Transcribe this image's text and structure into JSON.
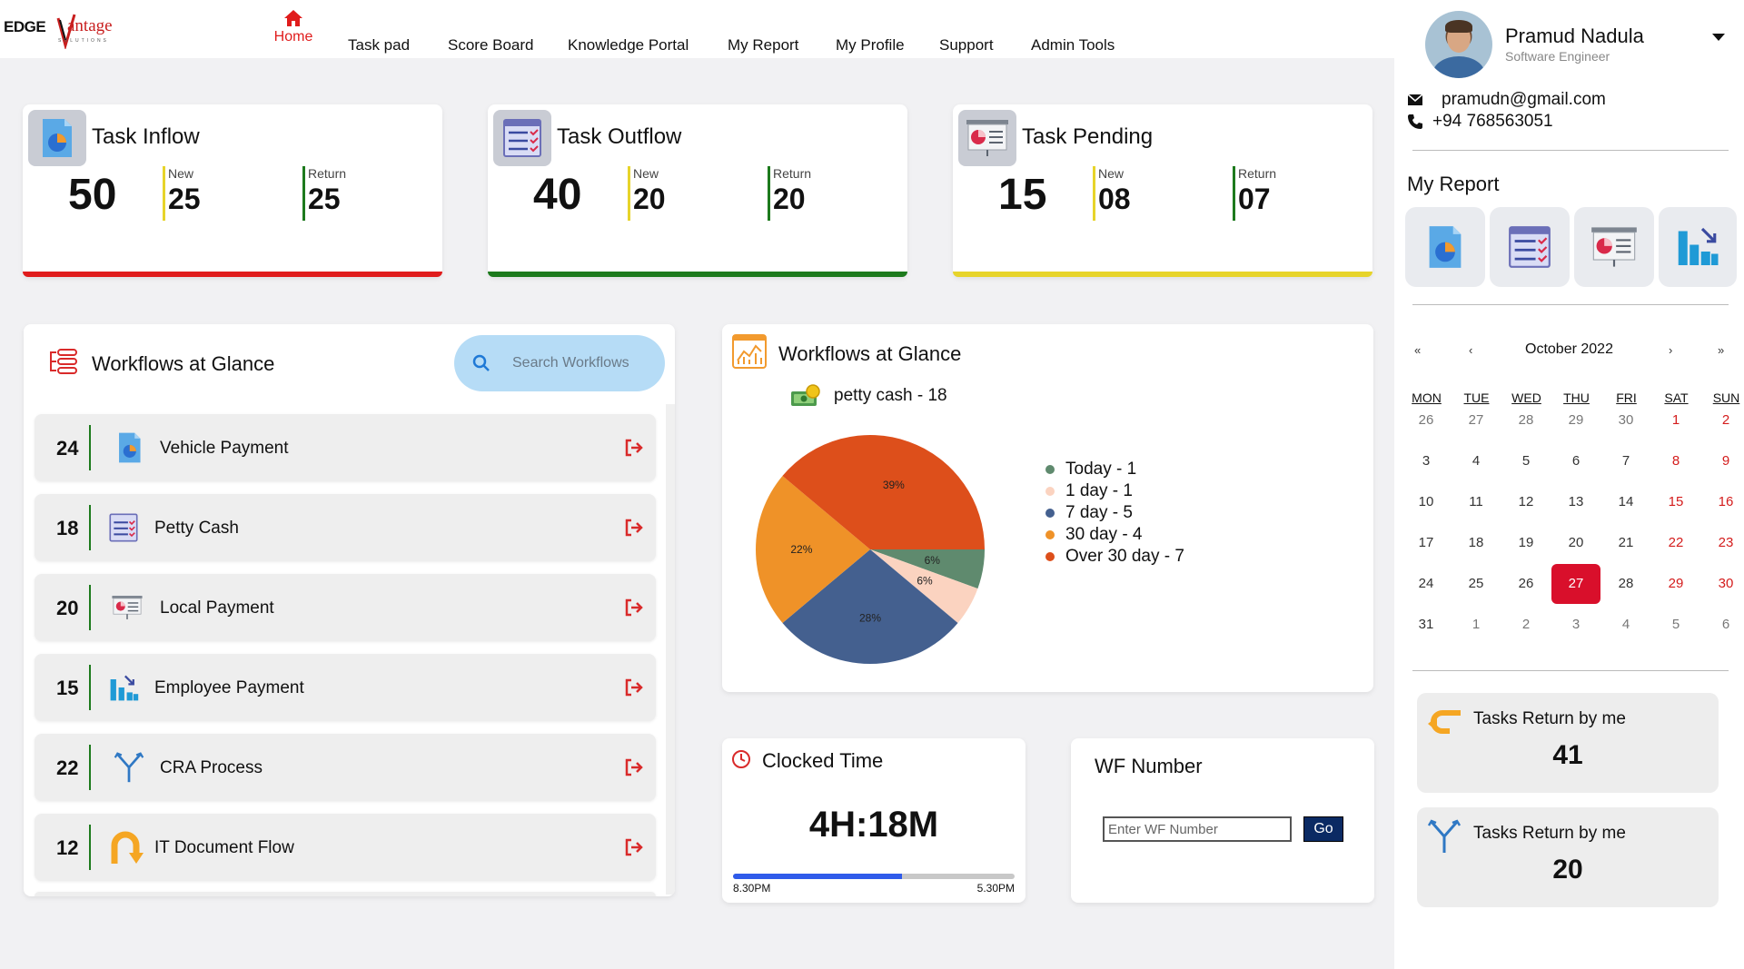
{
  "brand": {
    "edge": "EDGE",
    "vantage": "antage",
    "tagline": "SOLUTIONS"
  },
  "nav": {
    "home": "Home",
    "items": [
      "Task pad",
      "Score Board",
      "Knowledge Portal",
      "My Report",
      "My Profile",
      "Support",
      "Admin Tools"
    ]
  },
  "stats": [
    {
      "title": "Task Inflow",
      "total": "50",
      "new_label": "New",
      "new_value": "25",
      "return_label": "Return",
      "return_value": "25",
      "bar_color": "#e01c1c",
      "icon": "document-pie-icon"
    },
    {
      "title": "Task Outflow",
      "total": "40",
      "new_label": "New",
      "new_value": "20",
      "return_label": "Return",
      "return_value": "20",
      "bar_color": "#1d7a1d",
      "icon": "checklist-icon"
    },
    {
      "title": "Task Pending",
      "total": "15",
      "new_label": "New",
      "new_value": "08",
      "return_label": "Return",
      "return_value": "07",
      "bar_color": "#e7d42a",
      "icon": "presentation-chart-icon"
    }
  ],
  "workflows": {
    "title": "Workflows at Glance",
    "search_placeholder": "Search Workflows",
    "rows": [
      {
        "count": "24",
        "label": "Vehicle Payment",
        "icon": "document-pie-icon"
      },
      {
        "count": "18",
        "label": "Petty Cash",
        "icon": "checklist-icon"
      },
      {
        "count": "20",
        "label": "Local Payment",
        "icon": "presentation-chart-icon"
      },
      {
        "count": "15",
        "label": "Employee Payment",
        "icon": "bar-chart-icon"
      },
      {
        "count": "22",
        "label": "CRA Process",
        "icon": "merge-arrows-icon"
      },
      {
        "count": "12",
        "label": "IT Document Flow",
        "icon": "u-turn-arrow-icon"
      }
    ]
  },
  "pie_panel": {
    "title": "Workflows at Glance",
    "subtitle": "petty cash - 18"
  },
  "chart_data": {
    "type": "pie",
    "title": "Workflows at Glance",
    "subtitle": "petty cash - 18",
    "slices": [
      {
        "label": "Today - 1",
        "value": 1,
        "percent_label": "6%",
        "color": "#5f8a6e"
      },
      {
        "label": "1 day - 1",
        "value": 1,
        "percent_label": "6%",
        "color": "#fbd3c0"
      },
      {
        "label": "7 day - 5",
        "value": 5,
        "percent_label": "28%",
        "color": "#44608f"
      },
      {
        "label": "30 day - 4",
        "value": 4,
        "percent_label": "22%",
        "color": "#ef9228"
      },
      {
        "label": "Over 30 day - 7",
        "value": 7,
        "percent_label": "39%",
        "color": "#dd4f1b"
      }
    ],
    "legend_position": "right"
  },
  "clock": {
    "title": "Clocked Time",
    "value": "4H:18M",
    "start": "8.30PM",
    "end": "5.30PM",
    "progress": 0.6
  },
  "wf_number": {
    "title": "WF Number",
    "placeholder": "Enter WF Number",
    "go_label": "Go"
  },
  "user": {
    "name": "Pramud Nadula",
    "role": "Software Engineer",
    "email": "pramudn@gmail.com",
    "phone": "+94 768563051"
  },
  "my_report": {
    "title": "My Report",
    "tiles": [
      "document-pie-icon",
      "checklist-icon",
      "presentation-chart-icon",
      "bar-chart-arrow-icon"
    ]
  },
  "calendar": {
    "month": "October 2022",
    "nav": {
      "prev_year": "«",
      "prev": "‹",
      "next": "›",
      "next_year": "»"
    },
    "weekdays": [
      "MON",
      "TUE",
      "WED",
      "THU",
      "FRI",
      "SAT",
      "SUN"
    ],
    "weeks": [
      [
        "26",
        "27",
        "28",
        "29",
        "30",
        "1",
        "2"
      ],
      [
        "3",
        "4",
        "5",
        "6",
        "7",
        "8",
        "9"
      ],
      [
        "10",
        "11",
        "12",
        "13",
        "14",
        "15",
        "16"
      ],
      [
        "17",
        "18",
        "19",
        "20",
        "21",
        "22",
        "23"
      ],
      [
        "24",
        "25",
        "26",
        "27",
        "28",
        "29",
        "30"
      ],
      [
        "31",
        "1",
        "2",
        "3",
        "4",
        "5",
        "6"
      ]
    ],
    "today": "27"
  },
  "return_cards": [
    {
      "label": "Tasks Return by me",
      "value": "41",
      "icon": "u-turn-arrow-icon"
    },
    {
      "label": "Tasks Return by me",
      "value": "20",
      "icon": "merge-arrows-icon"
    }
  ]
}
